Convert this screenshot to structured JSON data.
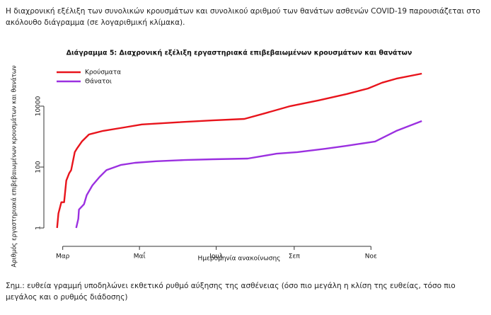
{
  "intro": "Η διαχρονική εξέλιξη των συνολικών κρουσμάτων και συνολικού αριθμού των θανάτων ασθενών COVID-19 παρουσιάζεται στο ακόλουθο διάγραμμα (σε λογαριθμική κλίμακα).",
  "chart_data": {
    "type": "line",
    "title": "Διάγραμμα 5: Διαχρονική εξέλιξη εργαστηριακά επιβεβαιωμένων κρουσμάτων και θανάτων",
    "xlabel": "Ημερομηνία ανακοίνωσης",
    "ylabel": "Αριθμός εργαστηριακά επιβεβαιωμένων κρουσμάτων και θανάτων",
    "log_y": true,
    "legend": "upper left",
    "xlim": [
      -15,
      296
    ],
    "xticks": [
      {
        "value": 0,
        "label": "Μαρ"
      },
      {
        "value": 61,
        "label": "Μαΐ"
      },
      {
        "value": 122,
        "label": "Ιουλ"
      },
      {
        "value": 184,
        "label": "Σεπ"
      },
      {
        "value": 245,
        "label": "Νοε"
      }
    ],
    "ylim": [
      0.5,
      470000
    ],
    "yticks": [
      1,
      100,
      10000
    ],
    "series": [
      {
        "name": "Κρούσματα",
        "color": "#e8141c",
        "x": [
          -4.5,
          -3.4,
          -1.1,
          1.1,
          2.8,
          5.1,
          6.7,
          9.6,
          11.2,
          15.2,
          20.8,
          32,
          48.9,
          62.9,
          91,
          119,
          144.4,
          161.2,
          180.9,
          203.4,
          225.8,
          242.7,
          253.9,
          265.2,
          285.4
        ],
        "values": [
          1,
          3,
          7,
          7,
          36,
          62,
          80,
          310,
          400,
          690,
          1170,
          1540,
          2000,
          2500,
          2950,
          3400,
          3800,
          5900,
          10000,
          15500,
          25000,
          38000,
          59000,
          80000,
          117000
        ]
      },
      {
        "name": "Θάνατοι",
        "color": "#9b30e0",
        "x": [
          10.7,
          12.4,
          12.9,
          16.9,
          19.1,
          23.6,
          29.2,
          34.8,
          46,
          57.3,
          74.2,
          96.6,
          119,
          147,
          170,
          186.5,
          209,
          225.8,
          248.3,
          265.2,
          285.4
        ],
        "values": [
          1,
          2,
          4,
          6,
          12,
          25,
          47,
          80,
          117,
          138,
          155,
          170,
          180,
          190,
          275,
          310,
          400,
          500,
          690,
          1540,
          3240
        ]
      }
    ]
  },
  "note": "Σημ.: ευθεία γραμμή υποδηλώνει εκθετικό ρυθμό αύξησης της ασθένειας (όσο πιο μεγάλη η κλίση της ευθείας, τόσο πιο μεγάλος και ο ρυθμός διάδοσης)"
}
